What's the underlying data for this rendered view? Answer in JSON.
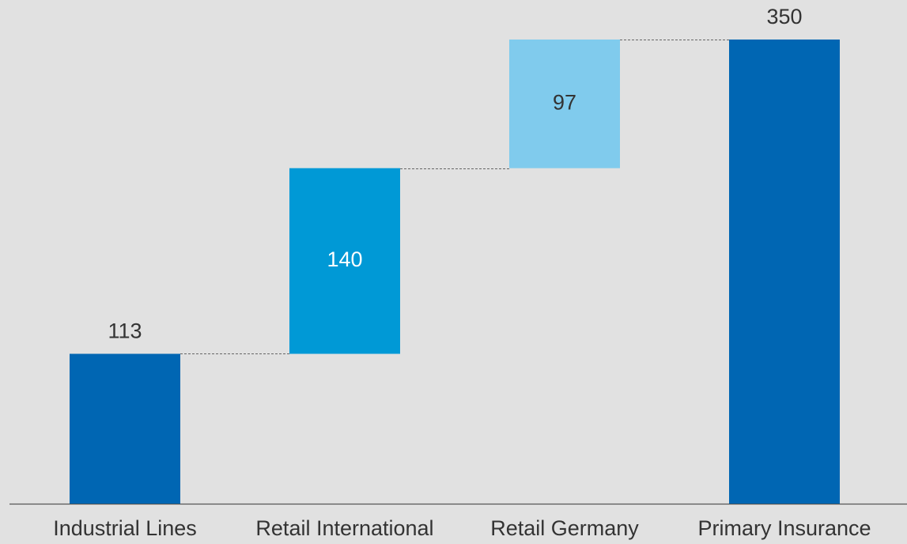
{
  "chart_data": {
    "type": "waterfall",
    "categories": [
      "Industrial Lines",
      "Retail International",
      "Retail Germany",
      "Primary Insurance"
    ],
    "values": [
      113,
      140,
      97,
      350
    ],
    "measure": [
      "absolute",
      "relative",
      "relative",
      "total"
    ],
    "colors": [
      "#0066b3",
      "#0099d6",
      "#80cbed",
      "#0066b3"
    ]
  }
}
